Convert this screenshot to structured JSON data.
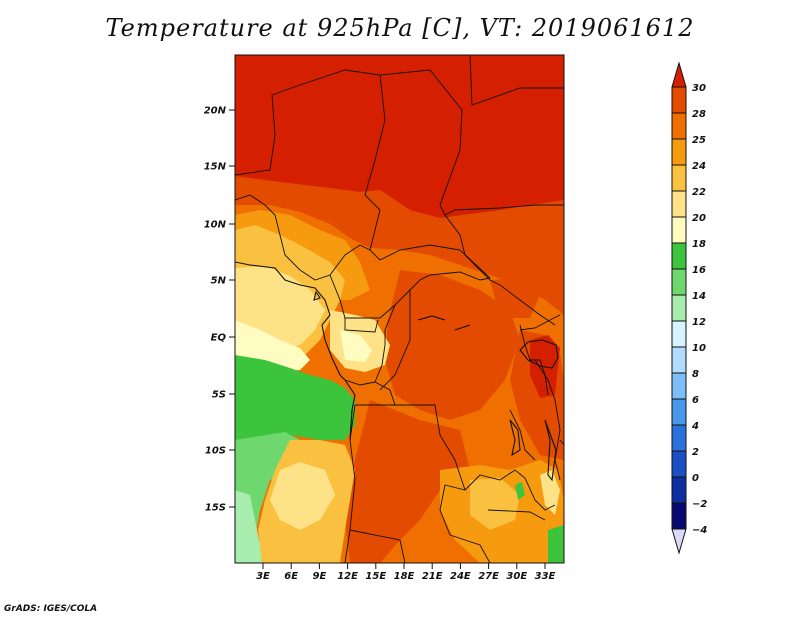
{
  "title": "Temperature at 925hPa [C], VT: 2019061612",
  "credit": "GrADS: IGES/COLA",
  "lat_labels": [
    "20N",
    "15N",
    "10N",
    "5N",
    "EQ",
    "5S",
    "10S",
    "15S"
  ],
  "lon_labels": [
    "3E",
    "6E",
    "9E",
    "12E",
    "15E",
    "18E",
    "21E",
    "24E",
    "27E",
    "30E",
    "33E"
  ],
  "colorbar": {
    "labels": [
      "30",
      "28",
      "25",
      "24",
      "22",
      "20",
      "18",
      "16",
      "14",
      "12",
      "10",
      "8",
      "6",
      "4",
      "2",
      "0",
      "−2",
      "−4"
    ],
    "colors": [
      "#d42000",
      "#e34b00",
      "#ef7000",
      "#f69a10",
      "#fac040",
      "#fde288",
      "#fefcc0",
      "#3cc43c",
      "#6ed86e",
      "#a8ecae",
      "#d6f4ff",
      "#b0ddff",
      "#7cbef8",
      "#4a98ec",
      "#2c72dc",
      "#1a50c4",
      "#0c2ea0",
      "#060a70",
      "#dcd8f8"
    ]
  }
}
